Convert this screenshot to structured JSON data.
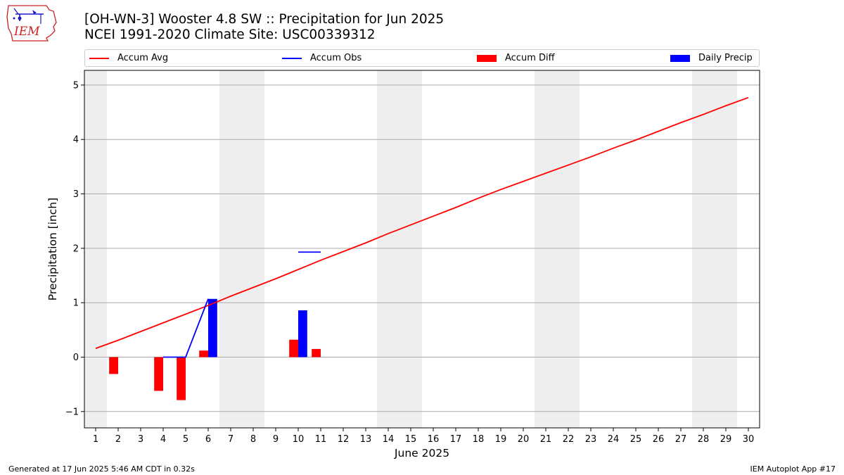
{
  "header": {
    "title_line1": "[OH-WN-3] Wooster 4.8 SW :: Precipitation for Jun 2025",
    "title_line2": "NCEI 1991-2020 Climate Site: USC00339312"
  },
  "logo": {
    "text": "IEM",
    "icon": "iem-iowa-logo"
  },
  "footer": {
    "generated": "Generated at 17 Jun 2025 5:46 AM CDT in 0.32s",
    "app": "IEM Autoplot App #17"
  },
  "colors": {
    "avg": "#ff0000",
    "obs": "#0000ff",
    "diff": "#ff0000",
    "daily": "#0000ff",
    "weekend": "#eeeeee",
    "grid": "#aaaaaa"
  },
  "chart_data": {
    "type": "bar",
    "xlabel": "June 2025",
    "ylabel": "Precipitation [inch]",
    "xlim": [
      0.5,
      30.5
    ],
    "ylim": [
      -1.3,
      5.27
    ],
    "yticks": [
      -1,
      0,
      1,
      2,
      3,
      4,
      5
    ],
    "ytick_labels": [
      "−1",
      "0",
      "1",
      "2",
      "3",
      "4",
      "5"
    ],
    "xticks": [
      1,
      2,
      3,
      4,
      5,
      6,
      7,
      8,
      9,
      10,
      11,
      12,
      13,
      14,
      15,
      16,
      17,
      18,
      19,
      20,
      21,
      22,
      23,
      24,
      25,
      26,
      27,
      28,
      29,
      30
    ],
    "grid": "horizontal",
    "legend_position": "top",
    "weekend_bands": [
      [
        0.5,
        1.5
      ],
      [
        6.5,
        8.5
      ],
      [
        13.5,
        15.5
      ],
      [
        20.5,
        22.5
      ],
      [
        27.5,
        29.5
      ]
    ],
    "series": [
      {
        "name": "Accum Avg",
        "kind": "line",
        "color": "#ff0000",
        "x": [
          1,
          2,
          3,
          4,
          5,
          6,
          7,
          8,
          9,
          10,
          11,
          12,
          13,
          14,
          15,
          16,
          17,
          18,
          19,
          20,
          21,
          22,
          23,
          24,
          25,
          26,
          27,
          28,
          29,
          30
        ],
        "values": [
          0.16,
          0.31,
          0.47,
          0.63,
          0.79,
          0.95,
          1.12,
          1.28,
          1.44,
          1.61,
          1.78,
          1.94,
          2.1,
          2.27,
          2.43,
          2.59,
          2.75,
          2.92,
          3.08,
          3.23,
          3.38,
          3.53,
          3.68,
          3.84,
          3.99,
          4.15,
          4.31,
          4.46,
          4.62,
          4.77
        ]
      },
      {
        "name": "Accum Obs",
        "kind": "line",
        "color": "#0000ff",
        "segments": [
          {
            "x": [
              4,
              5,
              6
            ],
            "values": [
              0.0,
              0.0,
              1.07
            ]
          },
          {
            "x": [
              10,
              11
            ],
            "values": [
              1.93,
              1.93
            ]
          }
        ]
      },
      {
        "name": "Accum Diff",
        "kind": "bar",
        "color": "#ff0000",
        "x": [
          2,
          4,
          5,
          6,
          10,
          11
        ],
        "values": [
          -0.31,
          -0.62,
          -0.79,
          0.12,
          0.32,
          0.15
        ]
      },
      {
        "name": "Daily Precip",
        "kind": "bar",
        "color": "#0000ff",
        "x": [
          6,
          10
        ],
        "values": [
          1.07,
          0.86
        ]
      }
    ]
  }
}
